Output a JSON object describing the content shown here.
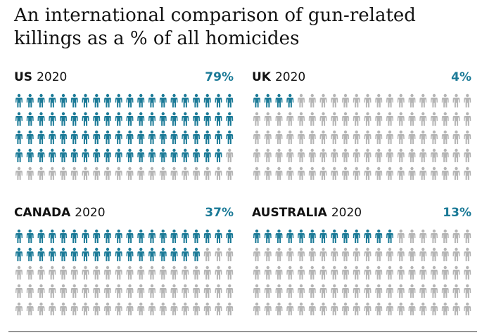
{
  "title": "An international comparison of gun-related killings as a % of all homicides",
  "colors": {
    "highlight": "#1b7a97",
    "base": "#b5b5b5"
  },
  "chart_data": {
    "type": "pictogram",
    "title": "An international comparison of gun-related killings as a % of all homicides",
    "units_per_panel": 100,
    "columns": 20,
    "rows": 5,
    "panels": [
      {
        "country": "US",
        "year": "2020",
        "value": 79,
        "label": "79%"
      },
      {
        "country": "UK",
        "year": "2020",
        "value": 4,
        "label": "4%"
      },
      {
        "country": "CANADA",
        "year": "2020",
        "value": 37,
        "label": "37%"
      },
      {
        "country": "AUSTRALIA",
        "year": "2020",
        "value": 13,
        "label": "13%"
      }
    ]
  }
}
